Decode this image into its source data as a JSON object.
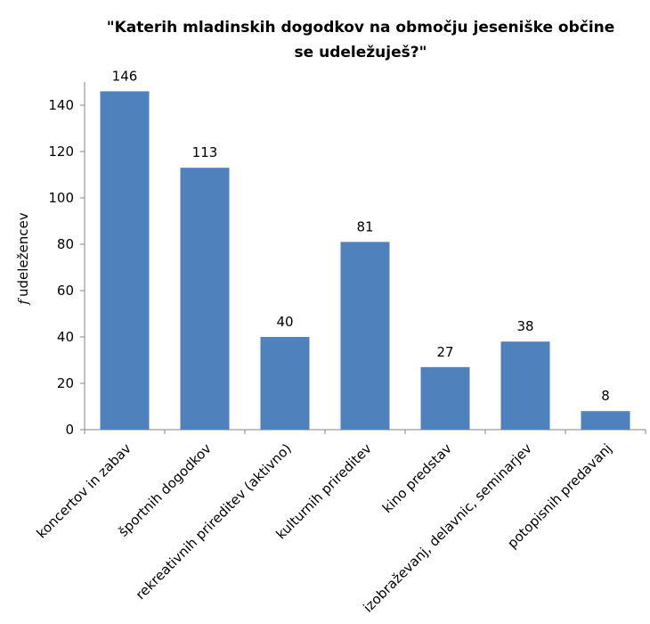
{
  "chart_data": {
    "type": "bar",
    "title_lines": [
      "\"Katerih mladinskih dogodkov na območju jeseniške občine",
      "se udeležuješ?\""
    ],
    "ylabel_symbol": "f",
    "ylabel_text": "udeležencev",
    "xlabel": "",
    "ylim": [
      0,
      150
    ],
    "yticks": [
      0,
      20,
      40,
      60,
      80,
      100,
      120,
      140
    ],
    "categories": [
      "koncertov in zabav",
      "športnih dogodkov",
      "rekreativnih prireditev (aktivno)",
      "kulturnih prireditev",
      "kino predstav",
      "izobraževanj, delavnic, seminarjev",
      "potopisnih predavanj"
    ],
    "values": [
      146,
      113,
      40,
      81,
      27,
      38,
      8
    ],
    "show_data_labels": true,
    "grid": false,
    "legend": "none",
    "bar_color": "#4F81BD",
    "axis_color": "#868686"
  }
}
